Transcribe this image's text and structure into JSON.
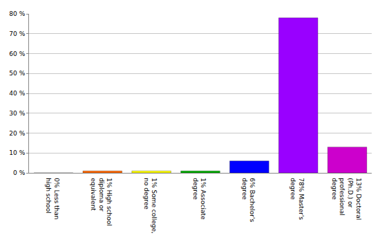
{
  "chart_data": {
    "type": "bar",
    "categories": [
      "0% Less than high school",
      "1% High school diploma or equivalent",
      "1% Some college, no degree",
      "1% Associate degree",
      "6% Bachelor's degree",
      "78% Master's degree",
      "13% Doctoral (Ph.D.) or professional degree"
    ],
    "values": [
      0,
      1,
      1,
      1,
      6,
      78,
      13
    ],
    "colors": [
      "#ff0000",
      "#ff6600",
      "#ffff00",
      "#00aa00",
      "#0000ff",
      "#9900ff",
      "#cc00cc"
    ],
    "ylim": [
      0,
      80
    ],
    "yticks": [
      {
        "value": 0,
        "label": "0 %"
      },
      {
        "value": 10,
        "label": "10 %"
      },
      {
        "value": 20,
        "label": "20 %"
      },
      {
        "value": 30,
        "label": "30 %"
      },
      {
        "value": 40,
        "label": "40 %"
      },
      {
        "value": 50,
        "label": "50 %"
      },
      {
        "value": 60,
        "label": "60 %"
      },
      {
        "value": 70,
        "label": "70 %"
      },
      {
        "value": 80,
        "label": "80 %"
      }
    ],
    "grid": true
  }
}
